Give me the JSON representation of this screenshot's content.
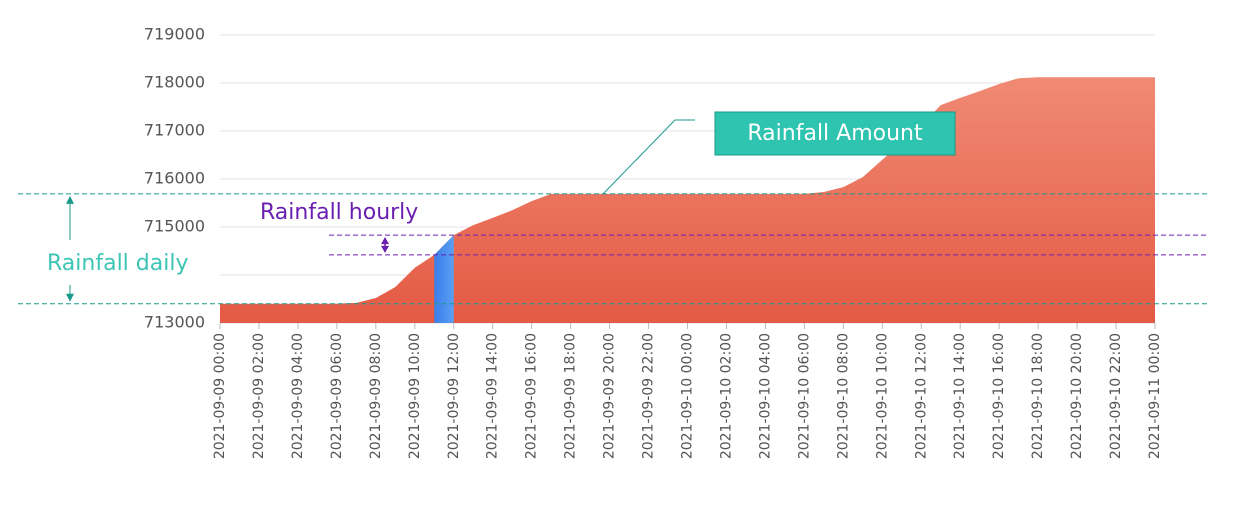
{
  "chart_data": {
    "type": "area",
    "categories": [
      "2021-09-09 00:00",
      null,
      "2021-09-09 02:00",
      null,
      "2021-09-09 04:00",
      null,
      "2021-09-09 06:00",
      null,
      "2021-09-09 08:00",
      null,
      "2021-09-09 10:00",
      null,
      "2021-09-09 12:00",
      null,
      "2021-09-09 14:00",
      null,
      "2021-09-09 16:00",
      null,
      "2021-09-09 18:00",
      null,
      "2021-09-09 20:00",
      null,
      "2021-09-09 22:00",
      null,
      "2021-09-10 00:00",
      null,
      "2021-09-10 02:00",
      null,
      "2021-09-10 04:00",
      null,
      "2021-09-10 06:00",
      null,
      "2021-09-10 08:00",
      null,
      "2021-09-10 10:00",
      null,
      "2021-09-10 12:00",
      null,
      "2021-09-10 14:00",
      null,
      "2021-09-10 16:00",
      null,
      "2021-09-10 18:00",
      null,
      "2021-09-10 20:00",
      null,
      "2021-09-10 22:00",
      null,
      "2021-09-11 00:00"
    ],
    "series": [
      {
        "color": "#ec624a",
        "values": [
          713400,
          713400,
          713400,
          713400,
          713400,
          713400,
          713400,
          713420,
          713520,
          713750,
          714150,
          714420,
          714830,
          715040,
          715190,
          715350,
          715540,
          715690,
          715690,
          715690,
          715690,
          715690,
          715690,
          715690,
          715690,
          715690,
          715690,
          715690,
          715690,
          715690,
          715690,
          715730,
          715830,
          716040,
          716400,
          716750,
          717120,
          717540,
          717690,
          717830,
          717980,
          718100,
          718120,
          718120,
          718120,
          718120,
          718120,
          718120,
          718120
        ]
      },
      {
        "color": "#4a8ef0",
        "values": [
          null,
          null,
          null,
          null,
          null,
          null,
          null,
          null,
          null,
          null,
          null,
          714420,
          714830,
          null,
          null,
          null,
          null,
          null,
          null,
          null,
          null,
          null,
          null,
          null,
          null,
          null,
          null,
          null,
          null,
          null,
          null,
          null,
          null,
          null,
          null,
          null,
          null,
          null,
          null,
          null,
          null,
          null,
          null,
          null,
          null,
          null,
          null,
          null,
          null
        ]
      }
    ],
    "ylim": [
      713000,
      719000
    ],
    "yticks": [
      713000,
      {
        "value": 714000,
        "label": null
      },
      715000,
      716000,
      717000,
      718000,
      719000
    ],
    "grid": true,
    "annotations": [
      {
        "text": "Rainfall Amount"
      },
      {
        "text": "Rainfall hourly",
        "from": 714420,
        "to": 714830
      },
      {
        "text": "Rainfall daily",
        "from": 713400,
        "to": 715690
      }
    ]
  }
}
